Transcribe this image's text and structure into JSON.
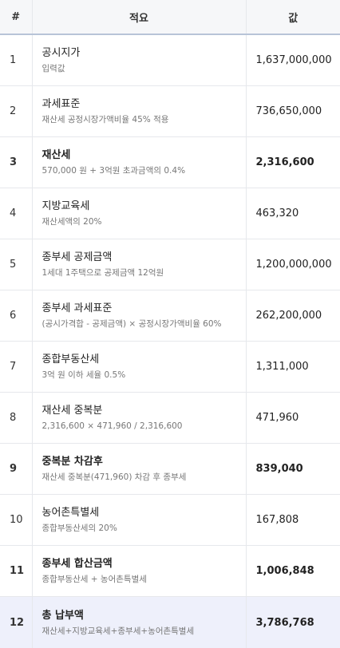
{
  "header": {
    "num": "#",
    "desc": "적요",
    "value": "값"
  },
  "rows": [
    {
      "num": "1",
      "label": "공시지가",
      "sub": "입력값",
      "value": "1,637,000,000"
    },
    {
      "num": "2",
      "label": "과세표준",
      "sub": "재산세 공정시장가액비율 45% 적용",
      "value": "736,650,000"
    },
    {
      "num": "3",
      "label": "재산세",
      "sub": "570,000 원 + 3억원 초과금액의 0.4%",
      "value": "2,316,600"
    },
    {
      "num": "4",
      "label": "지방교육세",
      "sub": "재산세액의 20%",
      "value": "463,320"
    },
    {
      "num": "5",
      "label": "종부세 공제금액",
      "sub": "1세대 1주택으로 공제금액 12억원",
      "value": "1,200,000,000"
    },
    {
      "num": "6",
      "label": "종부세 과세표준",
      "sub": "(공시가격합 - 공제금액) × 공정시장가액비율 60%",
      "value": "262,200,000"
    },
    {
      "num": "7",
      "label": "종합부동산세",
      "sub": "3억 원 이하 세율 0.5%",
      "value": "1,311,000"
    },
    {
      "num": "8",
      "label": "재산세 중복분",
      "sub": "2,316,600 × 471,960 / 2,316,600",
      "value": "471,960"
    },
    {
      "num": "9",
      "label": "중복분 차감후",
      "sub": "재산세 중복분(471,960) 차감 후 종부세",
      "value": "839,040"
    },
    {
      "num": "10",
      "label": "농어촌특별세",
      "sub": "종합부동산세의 20%",
      "value": "167,808"
    },
    {
      "num": "11",
      "label": "종부세 합산금액",
      "sub": "종합부동산세 + 농어촌특별세",
      "value": "1,006,848"
    },
    {
      "num": "12",
      "label": "총 납부액",
      "sub": "재산세+지방교육세+종부세+농어촌특별세",
      "value": "3,786,768"
    }
  ],
  "colors": {
    "header_bg": "#f6f7f9",
    "header_border": "#b8c4d8",
    "total_bg": "#eef0fb",
    "sub_text": "#777777"
  }
}
